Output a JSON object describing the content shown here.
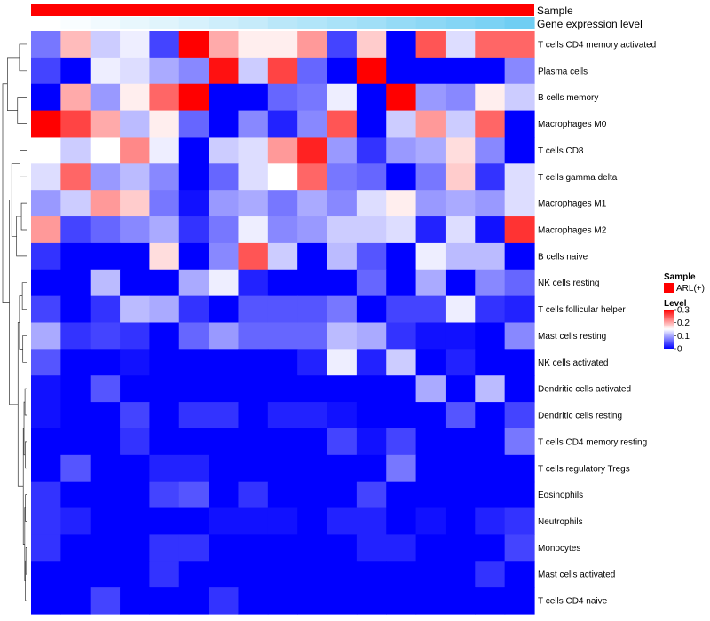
{
  "chart_data": {
    "type": "heatmap",
    "annotation_tracks": [
      "Sample",
      "Gene expression level"
    ],
    "rows": [
      "T cells CD4 memory activated",
      "Plasma cells",
      "B cells memory",
      "Macrophages M0",
      "T cells CD8",
      "T cells gamma delta",
      "Macrophages M1",
      "Macrophages M2",
      "B cells naive",
      "NK cells resting",
      "T cells follicular helper",
      "Mast cells resting",
      "NK cells activated",
      "Dendritic cells activated",
      "Dendritic cells resting",
      "T cells CD4 memory resting",
      "T cells regulatory  Tregs",
      "Eosinophils",
      "Neutrophils",
      "Monocytes",
      "Mast cells activated",
      "T cells CD4 naive"
    ],
    "n_columns": 17,
    "values": [
      [
        0.07,
        0.19,
        0.12,
        0.14,
        0.04,
        0.3,
        0.2,
        0.16,
        0.16,
        0.21,
        0.04,
        0.18,
        0.0,
        0.25,
        0.13,
        0.24,
        0.24
      ],
      [
        0.04,
        0.0,
        0.14,
        0.13,
        0.1,
        0.08,
        0.29,
        0.12,
        0.26,
        0.06,
        0.0,
        0.3,
        0.0,
        0.0,
        0.0,
        0.0,
        0.08
      ],
      [
        0.0,
        0.2,
        0.09,
        0.16,
        0.24,
        0.3,
        0.0,
        0.0,
        0.06,
        0.07,
        0.14,
        0.0,
        0.3,
        0.09,
        0.08,
        0.16,
        0.12
      ],
      [
        0.3,
        0.26,
        0.2,
        0.11,
        0.16,
        0.06,
        0.0,
        0.08,
        0.02,
        0.08,
        0.25,
        0.0,
        0.12,
        0.21,
        0.12,
        0.24,
        0.0
      ],
      [
        0.15,
        0.12,
        0.15,
        0.22,
        0.14,
        0.0,
        0.12,
        0.13,
        0.21,
        0.28,
        0.09,
        0.03,
        0.09,
        0.1,
        0.17,
        0.08,
        0.0
      ],
      [
        0.13,
        0.24,
        0.09,
        0.11,
        0.08,
        0.0,
        0.06,
        0.13,
        0.15,
        0.24,
        0.07,
        0.06,
        0.0,
        0.07,
        0.18,
        0.03,
        0.13
      ],
      [
        0.09,
        0.12,
        0.21,
        0.18,
        0.07,
        0.01,
        0.09,
        0.1,
        0.07,
        0.1,
        0.08,
        0.13,
        0.16,
        0.09,
        0.1,
        0.09,
        0.13
      ],
      [
        0.21,
        0.04,
        0.06,
        0.08,
        0.1,
        0.03,
        0.07,
        0.14,
        0.08,
        0.09,
        0.12,
        0.12,
        0.13,
        0.02,
        0.13,
        0.01,
        0.27
      ],
      [
        0.03,
        0.0,
        0.0,
        0.0,
        0.17,
        0.0,
        0.08,
        0.25,
        0.12,
        0.0,
        0.11,
        0.05,
        0.0,
        0.14,
        0.11,
        0.11,
        0.0
      ],
      [
        0.0,
        0.0,
        0.11,
        0.0,
        0.0,
        0.1,
        0.14,
        0.02,
        0.0,
        0.0,
        0.0,
        0.06,
        0.0,
        0.1,
        0.0,
        0.08,
        0.06
      ],
      [
        0.04,
        0.0,
        0.03,
        0.11,
        0.1,
        0.03,
        0.0,
        0.05,
        0.05,
        0.05,
        0.07,
        0.0,
        0.04,
        0.04,
        0.14,
        0.03,
        0.02
      ],
      [
        0.1,
        0.03,
        0.04,
        0.03,
        0.0,
        0.06,
        0.09,
        0.06,
        0.06,
        0.06,
        0.11,
        0.1,
        0.03,
        0.01,
        0.01,
        0.0,
        0.08
      ],
      [
        0.05,
        0.0,
        0.0,
        0.01,
        0.0,
        0.0,
        0.0,
        0.0,
        0.0,
        0.02,
        0.14,
        0.02,
        0.12,
        0.0,
        0.02,
        0.0,
        0.0
      ],
      [
        0.01,
        0.0,
        0.05,
        0.0,
        0.0,
        0.0,
        0.0,
        0.0,
        0.0,
        0.0,
        0.0,
        0.0,
        0.0,
        0.1,
        0.0,
        0.11,
        0.0
      ],
      [
        0.01,
        0.0,
        0.0,
        0.04,
        0.0,
        0.03,
        0.03,
        0.0,
        0.02,
        0.02,
        0.01,
        0.0,
        0.0,
        0.0,
        0.05,
        0.0,
        0.04
      ],
      [
        0.0,
        0.0,
        0.0,
        0.03,
        0.0,
        0.0,
        0.0,
        0.0,
        0.0,
        0.0,
        0.04,
        0.01,
        0.04,
        0.0,
        0.0,
        0.0,
        0.07
      ],
      [
        0.0,
        0.05,
        0.0,
        0.0,
        0.02,
        0.02,
        0.0,
        0.0,
        0.0,
        0.0,
        0.0,
        0.0,
        0.07,
        0.0,
        0.0,
        0.0,
        0.0
      ],
      [
        0.03,
        0.0,
        0.0,
        0.0,
        0.04,
        0.05,
        0.0,
        0.03,
        0.0,
        0.0,
        0.0,
        0.04,
        0.0,
        0.0,
        0.0,
        0.0,
        0.0
      ],
      [
        0.03,
        0.02,
        0.0,
        0.0,
        0.0,
        0.0,
        0.01,
        0.01,
        0.01,
        0.0,
        0.02,
        0.02,
        0.0,
        0.01,
        0.0,
        0.02,
        0.03
      ],
      [
        0.03,
        0.0,
        0.0,
        0.0,
        0.03,
        0.03,
        0.0,
        0.0,
        0.0,
        0.0,
        0.0,
        0.02,
        0.02,
        0.0,
        0.0,
        0.0,
        0.04
      ],
      [
        0.0,
        0.0,
        0.0,
        0.0,
        0.03,
        0.0,
        0.0,
        0.0,
        0.0,
        0.0,
        0.0,
        0.0,
        0.0,
        0.0,
        0.0,
        0.03,
        0.0
      ],
      [
        0.0,
        0.0,
        0.04,
        0.0,
        0.0,
        0.0,
        0.03,
        0.0,
        0.0,
        0.0,
        0.0,
        0.0,
        0.0,
        0.0,
        0.0,
        0.0,
        0.0
      ]
    ],
    "gene_expression_level": [
      0.0,
      0.02,
      0.05,
      0.08,
      0.11,
      0.14,
      0.17,
      0.2,
      0.24,
      0.27,
      0.3,
      0.33,
      0.37,
      0.4,
      0.43,
      0.46,
      0.5
    ],
    "legend": {
      "sample_title": "Sample",
      "sample_label": "ARL(+)",
      "level_title": "Level",
      "level_ticks": [
        0.3,
        0.2,
        0.1,
        0
      ],
      "level_tick_labels": [
        "0.3",
        "0.2",
        "0.1",
        "0"
      ],
      "position": "right"
    },
    "color_range": [
      0,
      0.3
    ],
    "colors": {
      "low": "#0000ff",
      "mid": "#ffffff",
      "high": "#ff0000",
      "sample": "#ff0000"
    },
    "dendrogram": "rows, left"
  }
}
